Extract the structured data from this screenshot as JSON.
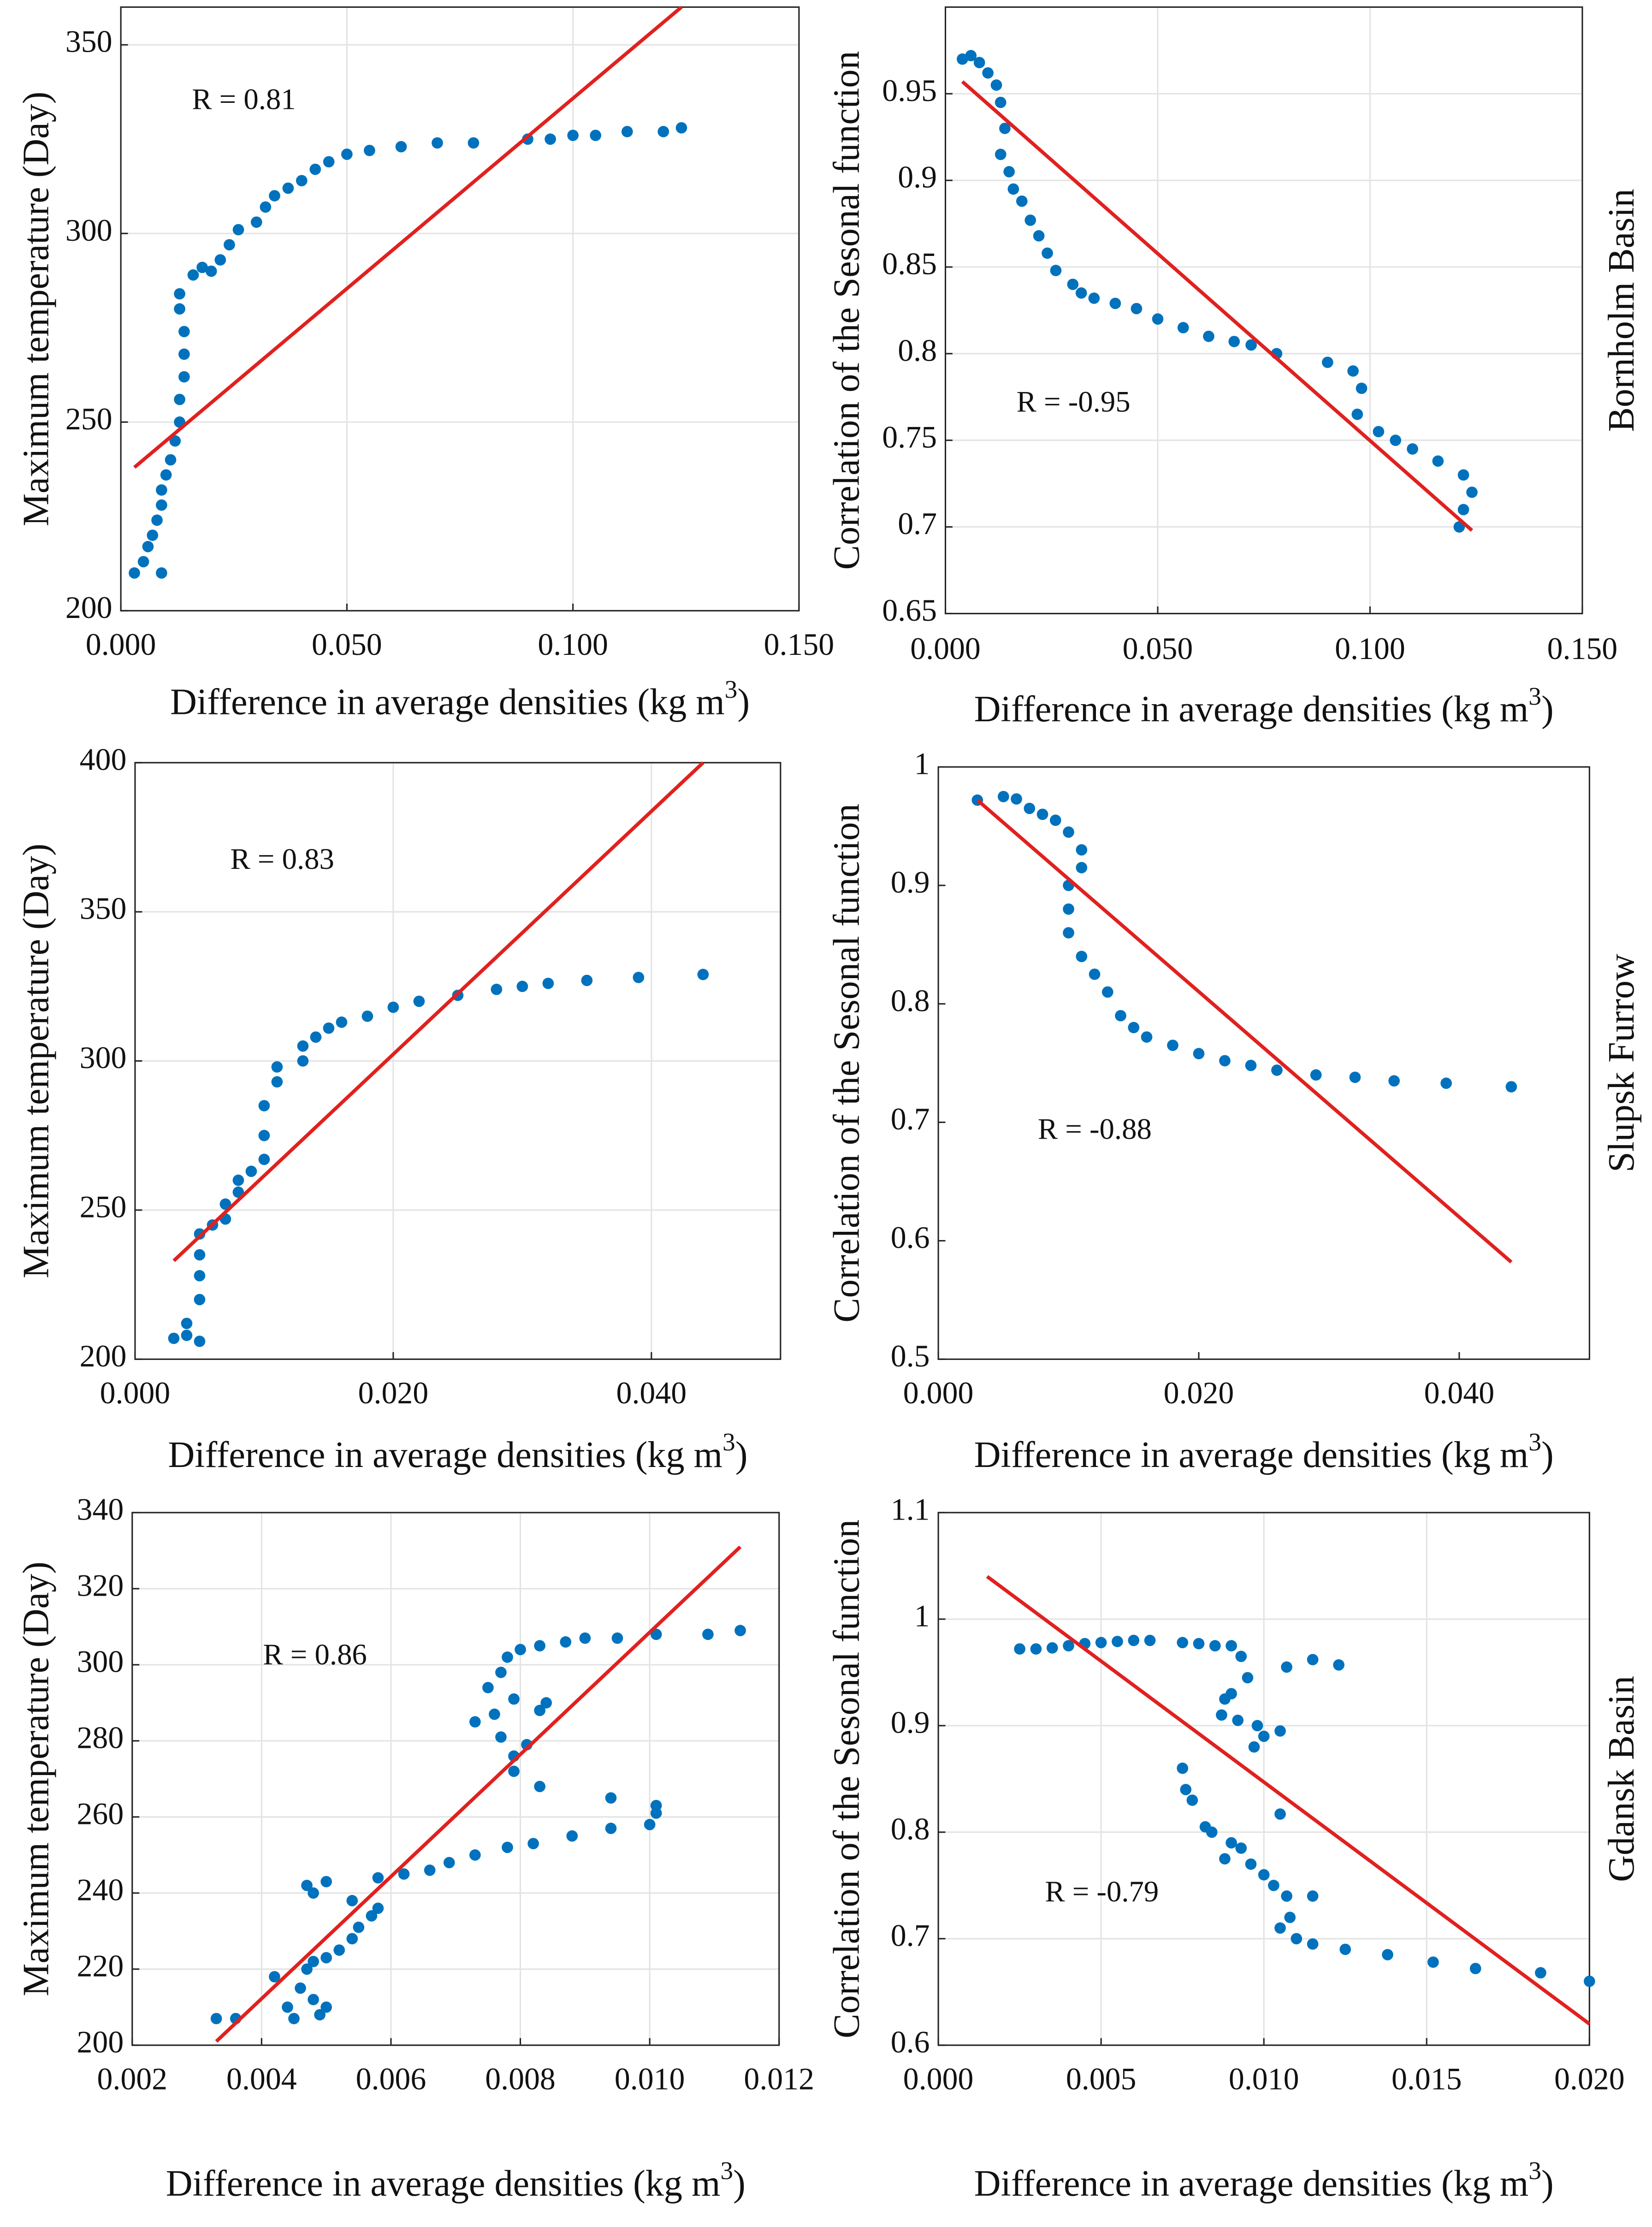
{
  "chart_data": [
    {
      "type": "scatter",
      "ylabel": "Maximum temperature (Day)",
      "xlabel": [
        "Difference in average densities (kg m",
        "3",
        ")"
      ],
      "annotation": "R = 0.81",
      "xlim": [
        0,
        0.15
      ],
      "ylim": [
        200,
        360
      ],
      "xticks": [
        {
          "value": 0,
          "label": "0.000"
        },
        {
          "value": 0.05,
          "label": "0.050"
        },
        {
          "value": 0.1,
          "label": "0.100"
        },
        {
          "value": 0.15,
          "label": "0.150"
        }
      ],
      "yticks": [
        200,
        250,
        300,
        350
      ],
      "grid": true,
      "points": {
        "color": "#0072bd",
        "x": [
          0.003,
          0.005,
          0.006,
          0.007,
          0.008,
          0.009,
          0.009,
          0.01,
          0.011,
          0.012,
          0.013,
          0.013,
          0.014,
          0.014,
          0.014,
          0.013,
          0.013,
          0.016,
          0.018,
          0.02,
          0.022,
          0.024,
          0.026,
          0.03,
          0.032,
          0.034,
          0.037,
          0.04,
          0.043,
          0.046,
          0.05,
          0.055,
          0.062,
          0.07,
          0.078,
          0.09,
          0.095,
          0.1,
          0.105,
          0.112,
          0.12,
          0.124,
          0.009
        ],
        "y": [
          210,
          213,
          217,
          220,
          224,
          228,
          232,
          236,
          240,
          245,
          250,
          256,
          262,
          268,
          274,
          280,
          284,
          289,
          291,
          290,
          293,
          297,
          301,
          303,
          307,
          310,
          312,
          314,
          317,
          319,
          321,
          322,
          323,
          324,
          324,
          325,
          325,
          326,
          326,
          327,
          327,
          328,
          210
        ]
      },
      "fit": {
        "color": "#e0211f",
        "x": [
          0.003,
          0.124
        ],
        "y": [
          238,
          360
        ]
      }
    },
    {
      "type": "scatter",
      "ylabel": "Correlation of the Sesonal function",
      "xlabel": [
        "Difference in average densities (kg m",
        "3",
        ")"
      ],
      "annotation": "R = -0.95",
      "side_label": "Bornholm Basin",
      "xlim": [
        0,
        0.15
      ],
      "ylim": [
        0.65,
        1.0
      ],
      "xticks": [
        {
          "value": 0,
          "label": "0.000"
        },
        {
          "value": 0.05,
          "label": "0.050"
        },
        {
          "value": 0.1,
          "label": "0.100"
        },
        {
          "value": 0.15,
          "label": "0.150"
        }
      ],
      "yticks": [
        0.65,
        0.7,
        0.75,
        0.8,
        0.85,
        0.9,
        0.95
      ],
      "grid": true,
      "points": {
        "color": "#0072bd",
        "x": [
          0.004,
          0.006,
          0.008,
          0.01,
          0.012,
          0.013,
          0.014,
          0.013,
          0.015,
          0.016,
          0.018,
          0.02,
          0.022,
          0.024,
          0.026,
          0.03,
          0.032,
          0.035,
          0.04,
          0.045,
          0.05,
          0.056,
          0.062,
          0.068,
          0.072,
          0.078,
          0.09,
          0.096,
          0.098,
          0.097,
          0.102,
          0.106,
          0.11,
          0.116,
          0.122,
          0.124,
          0.122,
          0.121
        ],
        "y": [
          0.97,
          0.972,
          0.968,
          0.962,
          0.955,
          0.945,
          0.93,
          0.915,
          0.905,
          0.895,
          0.888,
          0.877,
          0.868,
          0.858,
          0.848,
          0.84,
          0.835,
          0.832,
          0.829,
          0.826,
          0.82,
          0.815,
          0.81,
          0.807,
          0.805,
          0.8,
          0.795,
          0.79,
          0.78,
          0.765,
          0.755,
          0.75,
          0.745,
          0.738,
          0.73,
          0.72,
          0.71,
          0.7
        ]
      },
      "fit": {
        "color": "#e0211f",
        "x": [
          0.004,
          0.124
        ],
        "y": [
          0.957,
          0.698
        ]
      }
    },
    {
      "type": "scatter",
      "ylabel": "Maximum temperature (Day)",
      "xlabel": [
        "Difference in average densities (kg m",
        "3",
        ")"
      ],
      "annotation": "R = 0.83",
      "xlim": [
        0,
        0.05
      ],
      "ylim": [
        200,
        400
      ],
      "xticks": [
        {
          "value": 0,
          "label": "0.000"
        },
        {
          "value": 0.02,
          "label": "0.020"
        },
        {
          "value": 0.04,
          "label": "0.040"
        }
      ],
      "yticks": [
        200,
        250,
        300,
        350,
        400
      ],
      "grid": true,
      "points": {
        "color": "#0072bd",
        "x": [
          0.003,
          0.004,
          0.005,
          0.004,
          0.005,
          0.005,
          0.005,
          0.005,
          0.006,
          0.007,
          0.007,
          0.008,
          0.008,
          0.009,
          0.01,
          0.01,
          0.01,
          0.011,
          0.011,
          0.013,
          0.013,
          0.014,
          0.015,
          0.016,
          0.018,
          0.02,
          0.022,
          0.025,
          0.028,
          0.03,
          0.032,
          0.035,
          0.039,
          0.044
        ],
        "y": [
          207,
          208,
          206,
          212,
          220,
          228,
          235,
          242,
          245,
          247,
          252,
          256,
          260,
          263,
          267,
          275,
          285,
          293,
          298,
          300,
          305,
          308,
          311,
          313,
          315,
          318,
          320,
          322,
          324,
          325,
          326,
          327,
          328,
          329
        ]
      },
      "fit": {
        "color": "#e0211f",
        "x": [
          0.003,
          0.044
        ],
        "y": [
          233,
          400
        ]
      }
    },
    {
      "type": "scatter",
      "ylabel": "Correlation of the Sesonal function",
      "xlabel": [
        "Difference in average densities (kg m",
        "3",
        ")"
      ],
      "annotation": "R = -0.88",
      "side_label": "Slupsk Furrow",
      "xlim": [
        0,
        0.05
      ],
      "ylim": [
        0.5,
        1
      ],
      "xticks": [
        {
          "value": 0,
          "label": "0.000"
        },
        {
          "value": 0.02,
          "label": "0.020"
        },
        {
          "value": 0.04,
          "label": "0.040"
        }
      ],
      "yticks": [
        0.5,
        0.6,
        0.7,
        0.8,
        0.9,
        1
      ],
      "grid": false,
      "points": {
        "color": "#0072bd",
        "x": [
          0.003,
          0.005,
          0.006,
          0.007,
          0.008,
          0.009,
          0.01,
          0.011,
          0.011,
          0.01,
          0.01,
          0.01,
          0.011,
          0.012,
          0.013,
          0.014,
          0.015,
          0.016,
          0.018,
          0.02,
          0.022,
          0.024,
          0.026,
          0.029,
          0.032,
          0.035,
          0.039,
          0.044
        ],
        "y": [
          0.972,
          0.975,
          0.973,
          0.965,
          0.96,
          0.955,
          0.945,
          0.93,
          0.915,
          0.9,
          0.88,
          0.86,
          0.84,
          0.825,
          0.81,
          0.79,
          0.78,
          0.772,
          0.765,
          0.758,
          0.752,
          0.748,
          0.744,
          0.74,
          0.738,
          0.735,
          0.733,
          0.73
        ]
      },
      "fit": {
        "color": "#e0211f",
        "x": [
          0.003,
          0.044
        ],
        "y": [
          0.972,
          0.582
        ]
      }
    },
    {
      "type": "scatter",
      "ylabel": "Maximum temperature (Day)",
      "xlabel": [
        "Difference in average densities (kg m",
        "3",
        ")"
      ],
      "annotation": "R = 0.86",
      "xlim": [
        0.002,
        0.012
      ],
      "ylim": [
        200,
        340
      ],
      "xticks": [
        {
          "value": 0.002,
          "label": "0.002"
        },
        {
          "value": 0.004,
          "label": "0.004"
        },
        {
          "value": 0.006,
          "label": "0.006"
        },
        {
          "value": 0.008,
          "label": "0.008"
        },
        {
          "value": 0.01,
          "label": "0.010"
        },
        {
          "value": 0.012,
          "label": "0.012"
        }
      ],
      "yticks": [
        200,
        220,
        240,
        260,
        280,
        300,
        320,
        340
      ],
      "grid": true,
      "points": {
        "color": "#0072bd",
        "x": [
          0.0033,
          0.0036,
          0.0042,
          0.0044,
          0.0045,
          0.0046,
          0.0047,
          0.0048,
          0.0049,
          0.005,
          0.0048,
          0.005,
          0.0052,
          0.0054,
          0.0055,
          0.0057,
          0.0058,
          0.0047,
          0.0048,
          0.005,
          0.0054,
          0.0058,
          0.0062,
          0.0066,
          0.0069,
          0.0073,
          0.0078,
          0.0082,
          0.0088,
          0.0094,
          0.01,
          0.0101,
          0.0101,
          0.0094,
          0.0083,
          0.0079,
          0.0079,
          0.0081,
          0.0077,
          0.0073,
          0.0076,
          0.0079,
          0.0083,
          0.0084,
          0.0075,
          0.0077,
          0.0078,
          0.008,
          0.0083,
          0.0087,
          0.009,
          0.0095,
          0.0101,
          0.0109,
          0.0114
        ],
        "y": [
          207,
          207,
          218,
          210,
          207,
          215,
          220,
          212,
          208,
          210,
          222,
          223,
          225,
          228,
          231,
          234,
          236,
          242,
          240,
          243,
          238,
          244,
          245,
          246,
          248,
          250,
          252,
          253,
          255,
          257,
          258,
          261,
          263,
          265,
          268,
          272,
          276,
          279,
          281,
          285,
          287,
          291,
          288,
          290,
          294,
          298,
          302,
          304,
          305,
          306,
          307,
          307,
          308,
          308,
          309
        ]
      },
      "fit": {
        "color": "#e0211f",
        "x": [
          0.0033,
          0.0114
        ],
        "y": [
          201,
          331
        ]
      }
    },
    {
      "type": "scatter",
      "ylabel": "Correlation of the Sesonal function",
      "xlabel": [
        "Difference in average densities (kg m",
        "3",
        ")"
      ],
      "annotation": "R = -0.79",
      "side_label": "Gdansk Basin",
      "xlim": [
        0,
        0.02
      ],
      "ylim": [
        0.6,
        1.1
      ],
      "xticks": [
        {
          "value": 0,
          "label": "0.000"
        },
        {
          "value": 0.005,
          "label": "0.005"
        },
        {
          "value": 0.01,
          "label": "0.010"
        },
        {
          "value": 0.015,
          "label": "0.015"
        },
        {
          "value": 0.02,
          "label": "0.020"
        }
      ],
      "yticks": [
        0.6,
        0.7,
        0.8,
        0.9,
        1,
        1.1
      ],
      "grid": true,
      "points": {
        "color": "#0072bd",
        "x": [
          0.0025,
          0.003,
          0.0035,
          0.004,
          0.0045,
          0.005,
          0.0055,
          0.006,
          0.0065,
          0.0075,
          0.008,
          0.0085,
          0.009,
          0.0093,
          0.0095,
          0.0088,
          0.0087,
          0.009,
          0.0092,
          0.0097,
          0.01,
          0.0105,
          0.0098,
          0.0107,
          0.0115,
          0.0123,
          0.0075,
          0.0076,
          0.0078,
          0.0082,
          0.0084,
          0.0088,
          0.009,
          0.0093,
          0.0096,
          0.01,
          0.0103,
          0.0107,
          0.0115,
          0.0108,
          0.0105,
          0.011,
          0.0115,
          0.0125,
          0.0138,
          0.0152,
          0.0165,
          0.0185,
          0.02,
          0.0105
        ],
        "y": [
          0.972,
          0.972,
          0.973,
          0.975,
          0.977,
          0.978,
          0.979,
          0.98,
          0.98,
          0.978,
          0.977,
          0.975,
          0.975,
          0.965,
          0.945,
          0.925,
          0.91,
          0.93,
          0.905,
          0.88,
          0.89,
          0.895,
          0.9,
          0.955,
          0.962,
          0.957,
          0.86,
          0.84,
          0.83,
          0.805,
          0.8,
          0.775,
          0.79,
          0.785,
          0.77,
          0.76,
          0.75,
          0.74,
          0.74,
          0.72,
          0.71,
          0.7,
          0.695,
          0.69,
          0.685,
          0.678,
          0.672,
          0.668,
          0.66,
          0.817
        ]
      },
      "fit": {
        "color": "#e0211f",
        "x": [
          0.0015,
          0.02
        ],
        "y": [
          1.04,
          0.62
        ]
      }
    }
  ]
}
